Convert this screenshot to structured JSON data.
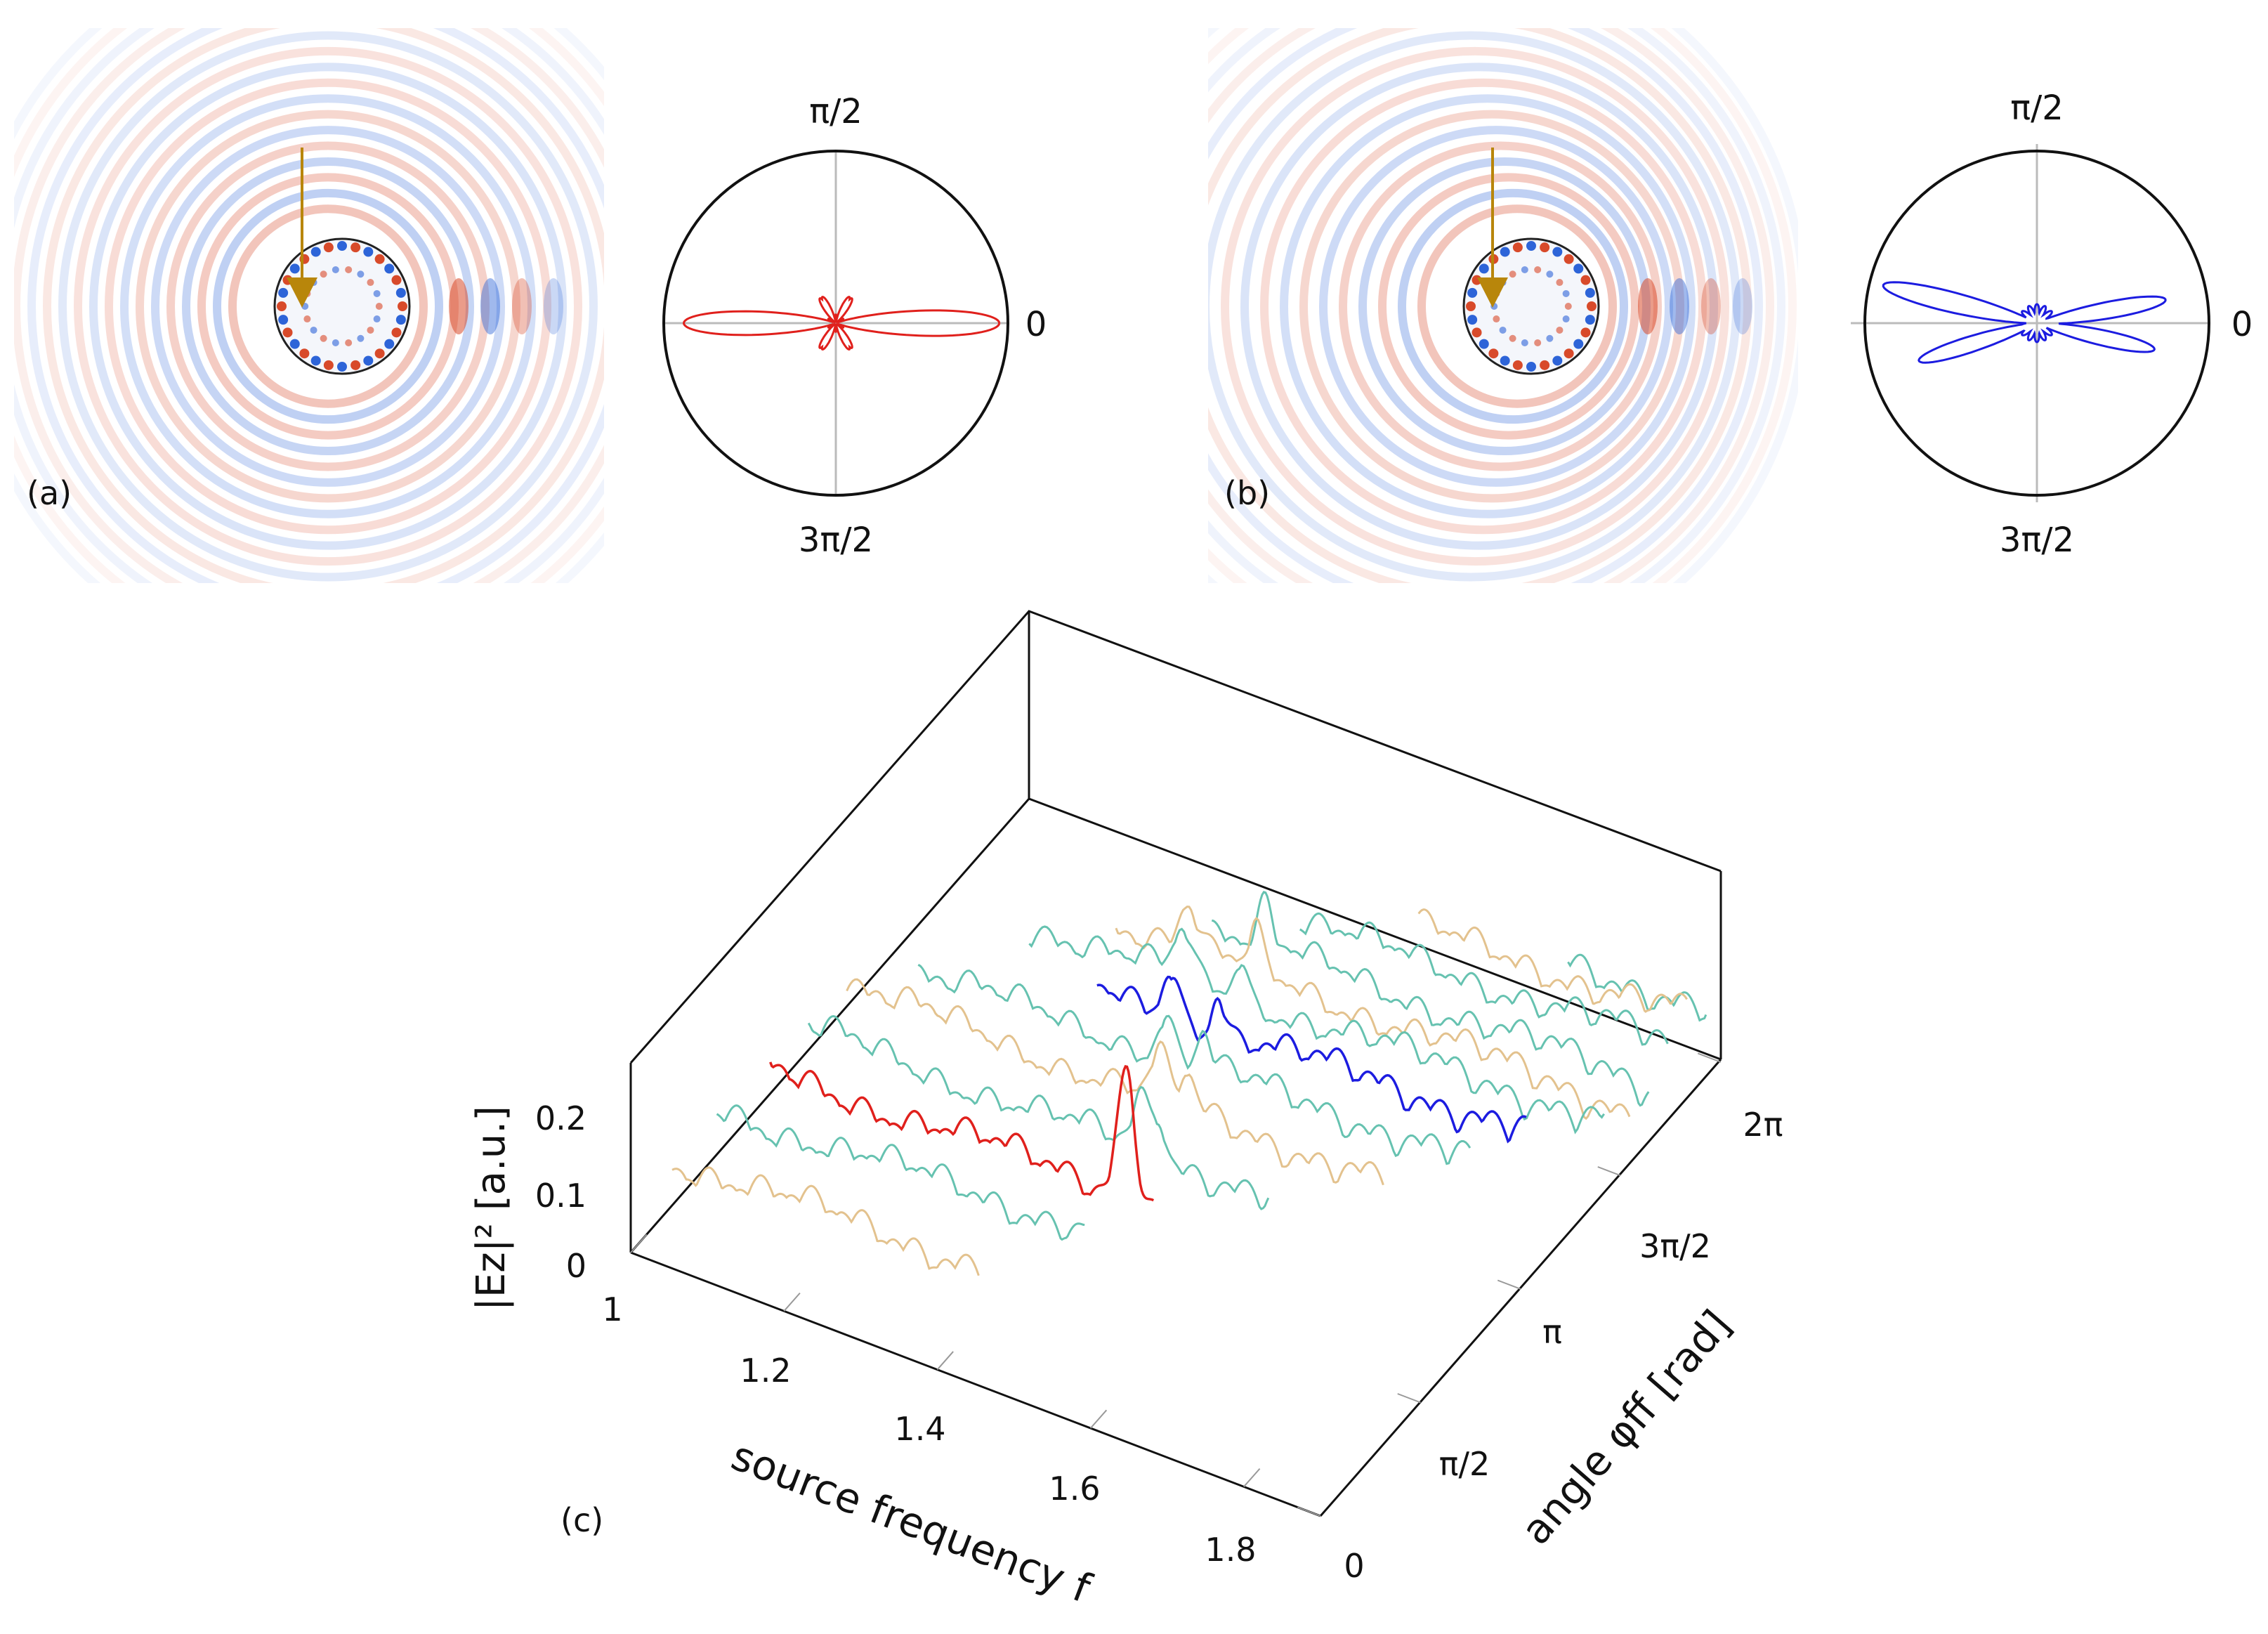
{
  "panels": {
    "a": {
      "label": "(a)"
    },
    "b": {
      "label": "(b)"
    },
    "c": {
      "label": "(c)"
    }
  },
  "polar": {
    "top": "π/2",
    "right": "0",
    "bottom": "3π/2",
    "colors": {
      "a": "#e0201c",
      "b": "#1c1ce0"
    }
  },
  "field_colors": {
    "positive": "#d84a2a",
    "negative": "#2d64d8",
    "source_arrow": "#b8860b"
  },
  "chart_data": {
    "type": "line",
    "projection": "3d-waterfall",
    "xlabel": "source frequency f",
    "ylabel": "angle φff [rad]",
    "zlabel": "|Ez|² [a.u.]",
    "x_ticks": [
      "1",
      "1.2",
      "1.4",
      "1.6",
      "1.8"
    ],
    "x_tick_values": [
      1.0,
      1.2,
      1.4,
      1.6,
      1.8
    ],
    "y_ticks": [
      "0",
      "π/2",
      "π",
      "3π/2",
      "2π"
    ],
    "y_tick_values": [
      0,
      1.5708,
      3.1416,
      4.7124,
      6.2832
    ],
    "z_ticks": [
      "0",
      "0.1",
      "0.2"
    ],
    "z_tick_values": [
      0,
      0.1,
      0.2
    ],
    "xlim": [
      1.0,
      1.9
    ],
    "ylim": [
      0,
      6.2832
    ],
    "zlim": [
      0,
      0.25
    ],
    "series_colors": {
      "teal": "#66c2b0",
      "tan": "#e3c28e",
      "red": "#e0201c",
      "blue": "#1c1ce0"
    }
  }
}
